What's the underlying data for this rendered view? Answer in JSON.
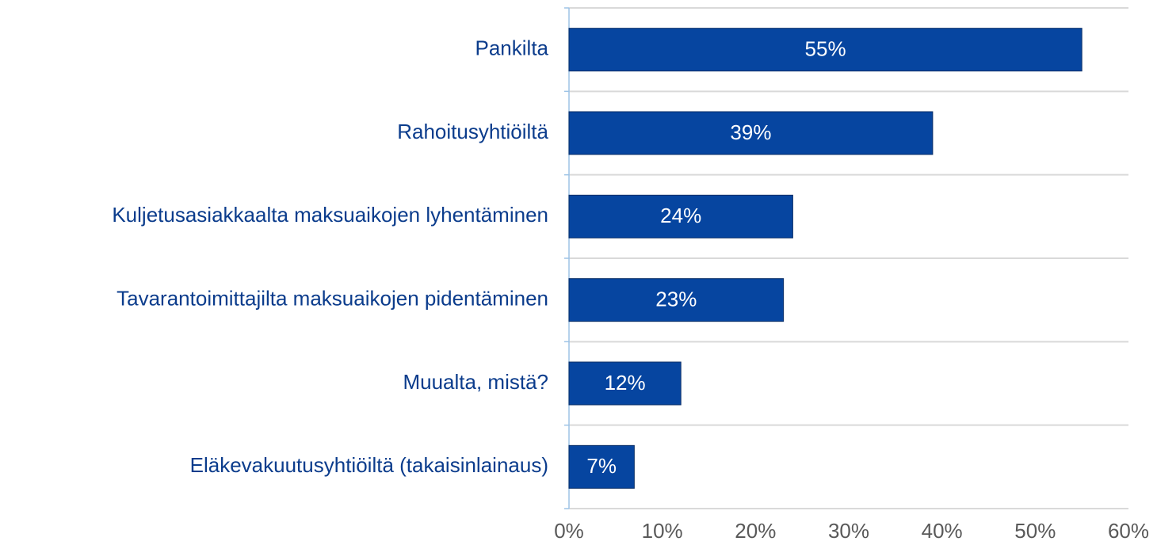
{
  "chart_data": {
    "type": "barh",
    "categories": [
      "Pankilta",
      "Rahoitusyhtiöiltä",
      "Kuljetusasiakkaalta maksuaikojen lyhentäminen",
      "Tavarantoimittajilta maksuaikojen pidentäminen",
      "Muualta, mistä?",
      "Eläkevakuutusyhtiöiltä (takaisinlainaus)"
    ],
    "values": [
      55,
      39,
      24,
      23,
      12,
      7
    ],
    "value_labels": [
      "55%",
      "39%",
      "24%",
      "23%",
      "12%",
      "7%"
    ],
    "color": "#0645a0",
    "xlim": [
      0,
      60
    ],
    "xticks": [
      {
        "value": 0,
        "label": "0%"
      },
      {
        "value": 10,
        "label": "10%"
      },
      {
        "value": 20,
        "label": "20%"
      },
      {
        "value": 30,
        "label": "30%"
      },
      {
        "value": 40,
        "label": "40%"
      },
      {
        "value": 50,
        "label": "50%"
      },
      {
        "value": 60,
        "label": "60%"
      }
    ]
  }
}
